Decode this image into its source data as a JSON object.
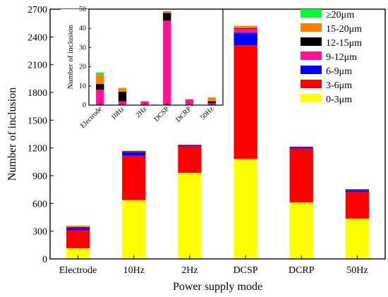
{
  "chart_data": [
    {
      "type": "bar",
      "stacked": true,
      "xlabel": "Power supply mode",
      "ylabel": "Number of inclusion",
      "ylim": [
        0,
        2700
      ],
      "yticks": [
        0,
        300,
        600,
        900,
        1200,
        1500,
        1800,
        2100,
        2400,
        2700
      ],
      "categories": [
        "Electrode",
        "10Hz",
        "2Hz",
        "DCSP",
        "DCRP",
        "50Hz"
      ],
      "legend_position": "top-right",
      "series": [
        {
          "name": "0-3μm",
          "color": "#ffff00",
          "values": [
            115,
            635,
            930,
            1080,
            610,
            435
          ]
        },
        {
          "name": "3-6μm",
          "color": "#ff0000",
          "values": [
            195,
            480,
            290,
            1230,
            585,
            290
          ]
        },
        {
          "name": "6-9μm",
          "color": "#0000ff",
          "values": [
            25,
            40,
            10,
            135,
            15,
            20
          ]
        },
        {
          "name": "9-12μm",
          "color": "#ff1493",
          "values": [
            5,
            5,
            5,
            45,
            5,
            5
          ]
        },
        {
          "name": "12-15μm",
          "color": "#000000",
          "values": [
            5,
            5,
            0,
            5,
            0,
            2
          ]
        },
        {
          "name": "15-20μm",
          "color": "#ff8000",
          "values": [
            15,
            5,
            0,
            25,
            0,
            3
          ]
        },
        {
          "name": "≥20μm",
          "color": "#00ff33",
          "values": [
            0,
            0,
            0,
            0,
            0,
            0
          ]
        }
      ]
    },
    {
      "type": "bar",
      "stacked": true,
      "inset": true,
      "ylabel": "Number of inclusion",
      "ylim": [
        0,
        50
      ],
      "yticks": [
        0,
        10,
        20,
        30,
        40,
        50
      ],
      "categories": [
        "Electrode",
        "10Hz",
        "2Hz",
        "DCSP",
        "DCRP",
        "50Hz"
      ],
      "series": [
        {
          "name": "9-12μm",
          "color": "#ff1493",
          "values": [
            8,
            2,
            2,
            44,
            3,
            1
          ]
        },
        {
          "name": "12-15μm",
          "color": "#000000",
          "values": [
            3,
            5,
            0,
            4,
            0,
            1
          ]
        },
        {
          "name": "15-20μm",
          "color": "#ff8000",
          "values": [
            5,
            2,
            0,
            1,
            0,
            2
          ]
        },
        {
          "name": "≥20μm",
          "color": "#00ff33",
          "values": [
            1,
            0,
            0,
            0,
            0,
            0
          ]
        }
      ]
    }
  ]
}
